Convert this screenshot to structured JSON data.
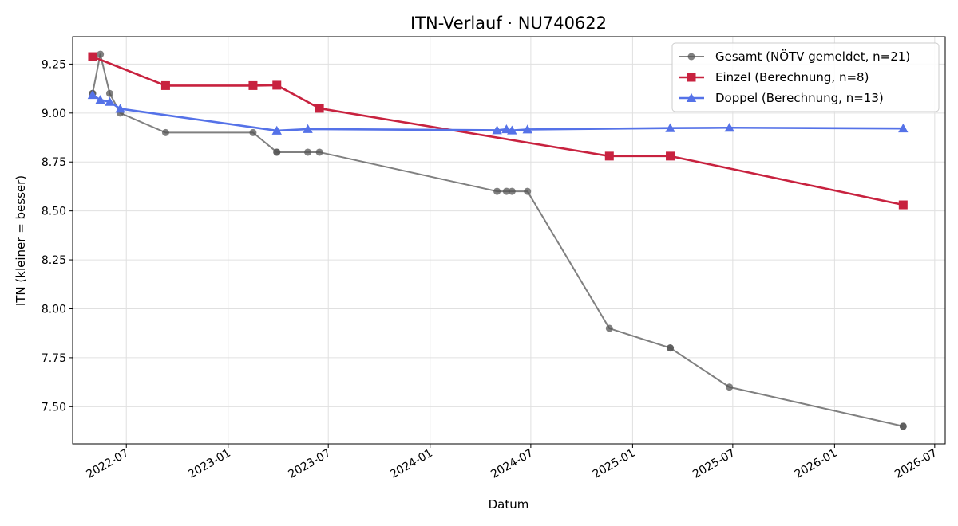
{
  "chart_data": {
    "type": "line",
    "title": "ITN-Verlauf · NU740622",
    "xlabel": "Datum",
    "ylabel": "ITN  (kleiner = besser)",
    "xlim": [
      "2022-03-26",
      "2026-07-20"
    ],
    "ylim": [
      7.31,
      9.39
    ],
    "x_ticks": [
      "2022-07",
      "2023-01",
      "2023-07",
      "2024-01",
      "2024-07",
      "2025-01",
      "2025-07",
      "2026-01",
      "2026-07"
    ],
    "y_ticks": [
      7.5,
      7.75,
      8.0,
      8.25,
      8.5,
      8.75,
      9.0,
      9.25
    ],
    "y_tick_labels": [
      "7.50",
      "7.75",
      "8.00",
      "8.25",
      "8.50",
      "8.75",
      "9.00",
      "9.25"
    ],
    "grid": true,
    "legend_position": "top-right",
    "series": [
      {
        "name": "Gesamt (NÖTV gemeldet, n=21)",
        "color": "#555555",
        "marker": "circle",
        "points": [
          {
            "x": "2022-05-01",
            "y": 9.1
          },
          {
            "x": "2022-05-01",
            "y": 9.1
          },
          {
            "x": "2022-05-15",
            "y": 9.3
          },
          {
            "x": "2022-06-01",
            "y": 9.1
          },
          {
            "x": "2022-06-20",
            "y": 9.0
          },
          {
            "x": "2022-09-10",
            "y": 8.9
          },
          {
            "x": "2023-02-15",
            "y": 8.9
          },
          {
            "x": "2023-03-30",
            "y": 8.8
          },
          {
            "x": "2023-03-30",
            "y": 8.8
          },
          {
            "x": "2023-05-25",
            "y": 8.8
          },
          {
            "x": "2023-06-15",
            "y": 8.8
          },
          {
            "x": "2024-05-01",
            "y": 8.6
          },
          {
            "x": "2024-05-18",
            "y": 8.6
          },
          {
            "x": "2024-05-28",
            "y": 8.6
          },
          {
            "x": "2024-06-25",
            "y": 8.6
          },
          {
            "x": "2024-11-20",
            "y": 7.9
          },
          {
            "x": "2025-03-10",
            "y": 7.8
          },
          {
            "x": "2025-03-10",
            "y": 7.8
          },
          {
            "x": "2025-06-25",
            "y": 7.6
          },
          {
            "x": "2026-05-05",
            "y": 7.4
          },
          {
            "x": "2026-05-05",
            "y": 7.4
          }
        ]
      },
      {
        "name": "Einzel (Berechnung, n=8)",
        "color": "#c8223f",
        "marker": "square",
        "points": [
          {
            "x": "2022-05-01",
            "y": 9.288
          },
          {
            "x": "2022-09-10",
            "y": 9.14
          },
          {
            "x": "2023-02-15",
            "y": 9.14
          },
          {
            "x": "2023-03-30",
            "y": 9.142
          },
          {
            "x": "2023-06-15",
            "y": 9.024
          },
          {
            "x": "2024-11-20",
            "y": 8.78
          },
          {
            "x": "2025-03-10",
            "y": 8.78
          },
          {
            "x": "2026-05-05",
            "y": 8.531
          }
        ]
      },
      {
        "name": "Doppel (Berechnung, n=13)",
        "color": "#5572e8",
        "marker": "triangle",
        "points": [
          {
            "x": "2022-05-01",
            "y": 9.092
          },
          {
            "x": "2022-05-15",
            "y": 9.067
          },
          {
            "x": "2022-06-01",
            "y": 9.057
          },
          {
            "x": "2022-06-20",
            "y": 9.022
          },
          {
            "x": "2023-03-30",
            "y": 8.91
          },
          {
            "x": "2023-05-25",
            "y": 8.918
          },
          {
            "x": "2024-05-01",
            "y": 8.912
          },
          {
            "x": "2024-05-18",
            "y": 8.917
          },
          {
            "x": "2024-05-28",
            "y": 8.911
          },
          {
            "x": "2024-06-25",
            "y": 8.916
          },
          {
            "x": "2025-03-10",
            "y": 8.923
          },
          {
            "x": "2025-06-25",
            "y": 8.925
          },
          {
            "x": "2026-05-05",
            "y": 8.921
          }
        ]
      }
    ]
  }
}
